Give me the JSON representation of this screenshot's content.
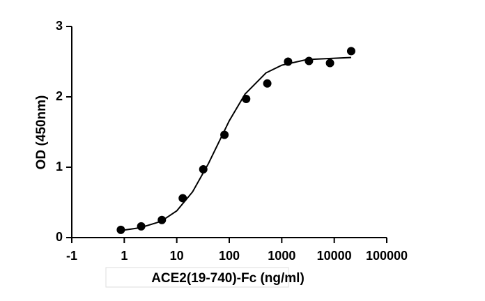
{
  "chart_data": {
    "type": "scatter",
    "x_label": "ACE2(19-740)-Fc (ng/ml)",
    "y_label": "OD (450nm)",
    "xscale": "log",
    "xlim": [
      0.1,
      100000
    ],
    "xticks": [
      {
        "value": 0.1,
        "label": "-1"
      },
      1,
      10,
      100,
      1000,
      10000,
      100000
    ],
    "ylim": [
      0,
      3
    ],
    "yticks": [
      0,
      1,
      2,
      3
    ],
    "series": [
      {
        "type": "scatter",
        "color": "#000000",
        "x": [
          0.86,
          2.1,
          5.2,
          13,
          32,
          81,
          210,
          530,
          1320,
          3300,
          8300,
          21000
        ],
        "values": [
          0.11,
          0.16,
          0.25,
          0.56,
          0.97,
          1.46,
          1.97,
          2.19,
          2.5,
          2.51,
          2.48,
          2.65
        ]
      },
      {
        "type": "line",
        "color": "#000000",
        "x": [
          0.86,
          2,
          5,
          10,
          20,
          40,
          60,
          100,
          200,
          500,
          1000,
          3000,
          21000
        ],
        "values": [
          0.1,
          0.14,
          0.23,
          0.38,
          0.65,
          1.05,
          1.32,
          1.66,
          2.04,
          2.34,
          2.45,
          2.53,
          2.56
        ]
      }
    ]
  }
}
